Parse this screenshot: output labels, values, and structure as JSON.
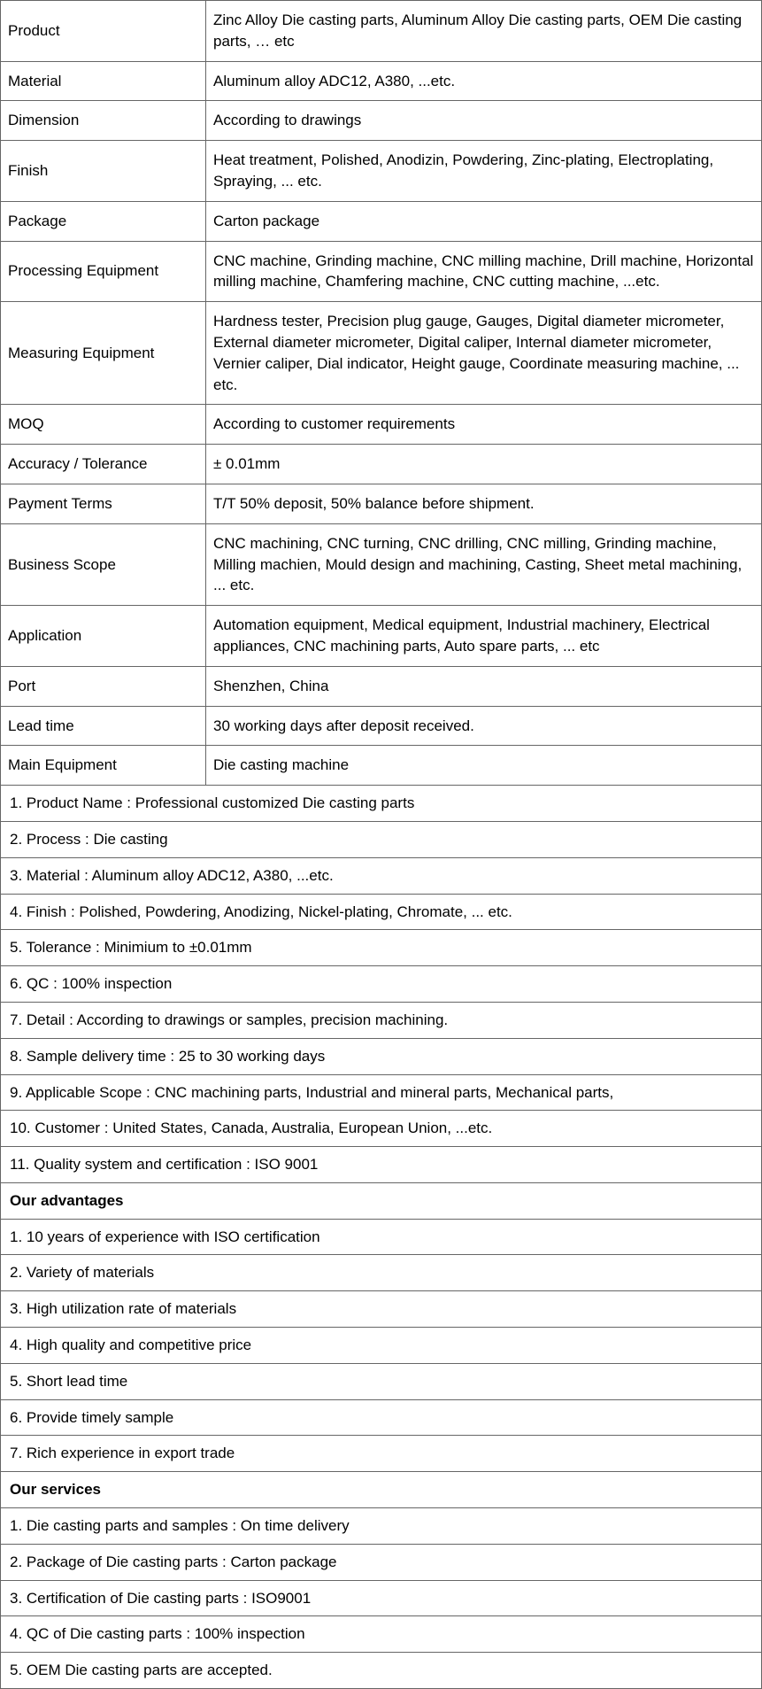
{
  "specs": [
    {
      "label": "Product",
      "value": " Zinc Alloy Die casting parts, Aluminum Alloy Die casting parts, OEM Die casting parts, … etc"
    },
    {
      "label": "Material",
      "value": " Aluminum alloy ADC12, A380, ...etc."
    },
    {
      "label": "Dimension",
      "value": " According to drawings"
    },
    {
      "label": "Finish",
      "value": " Heat treatment, Polished, Anodizin, Powdering, Zinc-plating, Electroplating, Spraying, ... etc."
    },
    {
      "label": "Package",
      "value": " Carton package"
    },
    {
      "label": "Processing Equipment",
      "value": " CNC machine, Grinding machine, CNC milling machine, Drill machine, Horizontal milling machine, Chamfering machine, CNC cutting machine, ...etc."
    },
    {
      "label": "Measuring Equipment",
      "value": " Hardness tester, Precision plug gauge, Gauges, Digital diameter micrometer, External diameter micrometer, Digital caliper, Internal diameter micrometer, Vernier caliper, Dial indicator, Height gauge, Coordinate measuring machine, ... etc."
    },
    {
      "label": "MOQ",
      "value": " According to customer requirements"
    },
    {
      "label": "Accuracy / Tolerance",
      "value": " ± 0.01mm"
    },
    {
      "label": "Payment Terms",
      "value": " T/T 50% deposit, 50% balance before shipment."
    },
    {
      "label": "Business Scope",
      "value": " CNC machining, CNC turning, CNC drilling, CNC milling, Grinding machine, Milling machien, Mould design and machining, Casting, Sheet metal machining, ... etc."
    },
    {
      "label": "Application",
      "value": " Automation equipment, Medical equipment, Industrial machinery, Electrical appliances, CNC machining parts, Auto spare parts, ... etc"
    },
    {
      "label": "Port",
      "value": " Shenzhen, China"
    },
    {
      "label": "Lead time",
      "value": " 30 working days after deposit received."
    },
    {
      "label": "Main Equipment",
      "value": " Die casting machine"
    }
  ],
  "details": [
    {
      "text": "1. Product Name : Professional customized Die casting parts",
      "bold": false
    },
    {
      "text": "2. Process : Die casting",
      "bold": false
    },
    {
      "text": "3. Material : Aluminum alloy ADC12, A380, ...etc.",
      "bold": false
    },
    {
      "text": "4. Finish : Polished, Powdering, Anodizing, Nickel-plating, Chromate, ... etc.",
      "bold": false
    },
    {
      "text": "5. Tolerance : Minimium to ±0.01mm",
      "bold": false
    },
    {
      "text": "6. QC : 100% inspection",
      "bold": false
    },
    {
      "text": "7. Detail : According to drawings or samples, precision machining.",
      "bold": false
    },
    {
      "text": "8. Sample delivery time : 25 to 30 working days",
      "bold": false
    },
    {
      "text": "9. Applicable Scope : CNC machining parts, Industrial and mineral parts, Mechanical parts,",
      "bold": false
    },
    {
      "text": "10. Customer : United States, Canada, Australia, European Union, ...etc.",
      "bold": false
    },
    {
      "text": "11. Quality system and certification : ISO 9001",
      "bold": false
    },
    {
      "text": "Our advantages",
      "bold": true
    },
    {
      "text": "1. 10 years of experience with ISO certification",
      "bold": false
    },
    {
      "text": "2. Variety of materials",
      "bold": false
    },
    {
      "text": "3. High utilization rate of materials",
      "bold": false
    },
    {
      "text": "4. High quality and competitive price",
      "bold": false
    },
    {
      "text": "5. Short lead time",
      "bold": false
    },
    {
      "text": "6. Provide timely sample",
      "bold": false
    },
    {
      "text": "7. Rich experience in export trade",
      "bold": false
    },
    {
      "text": "Our services",
      "bold": true
    },
    {
      "text": "1. Die casting parts and samples : On time delivery",
      "bold": false
    },
    {
      "text": "2. Package of Die casting parts : Carton package",
      "bold": false
    },
    {
      "text": "3. Certification of Die casting parts : ISO9001",
      "bold": false
    },
    {
      "text": "4. QC of Die casting parts : 100% inspection",
      "bold": false
    },
    {
      "text": "5. OEM Die casting parts are accepted.",
      "bold": false
    }
  ],
  "style": {
    "border_color": "#666666",
    "text_color": "#000000",
    "background_color": "#ffffff",
    "font_size": 17,
    "label_col_width": 232,
    "font_family": "Arial, sans-serif"
  }
}
